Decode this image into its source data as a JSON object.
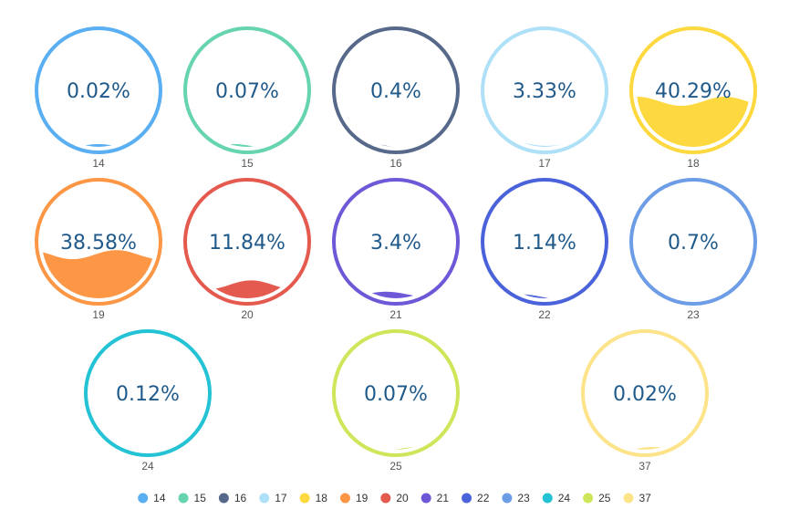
{
  "chart_data": {
    "type": "liquidfill",
    "unit": "%",
    "items": [
      {
        "name": "14",
        "label": "0.02%",
        "value": 0.02,
        "color": "#5aaef2"
      },
      {
        "name": "15",
        "label": "0.07%",
        "value": 0.07,
        "color": "#66d4ae"
      },
      {
        "name": "16",
        "label": "0.4%",
        "value": 0.4,
        "color": "#57698a"
      },
      {
        "name": "17",
        "label": "3.33%",
        "value": 3.33,
        "color": "#aee0f8"
      },
      {
        "name": "18",
        "label": "40.29%",
        "value": 40.29,
        "color": "#fdd83e"
      },
      {
        "name": "19",
        "label": "38.58%",
        "value": 38.58,
        "color": "#fd9645"
      },
      {
        "name": "20",
        "label": "11.84%",
        "value": 11.84,
        "color": "#e55a4f"
      },
      {
        "name": "21",
        "label": "3.4%",
        "value": 3.4,
        "color": "#6f58d8"
      },
      {
        "name": "22",
        "label": "1.14%",
        "value": 1.14,
        "color": "#4a63da"
      },
      {
        "name": "23",
        "label": "0.7%",
        "value": 0.7,
        "color": "#6c9de6"
      },
      {
        "name": "24",
        "label": "0.12%",
        "value": 0.12,
        "color": "#23c2d4"
      },
      {
        "name": "25",
        "label": "0.07%",
        "value": 0.07,
        "color": "#cde65a"
      },
      {
        "name": "37",
        "label": "0.02%",
        "value": 0.02,
        "color": "#fde38a"
      }
    ],
    "legend": {
      "placement": "bottom-center"
    }
  }
}
